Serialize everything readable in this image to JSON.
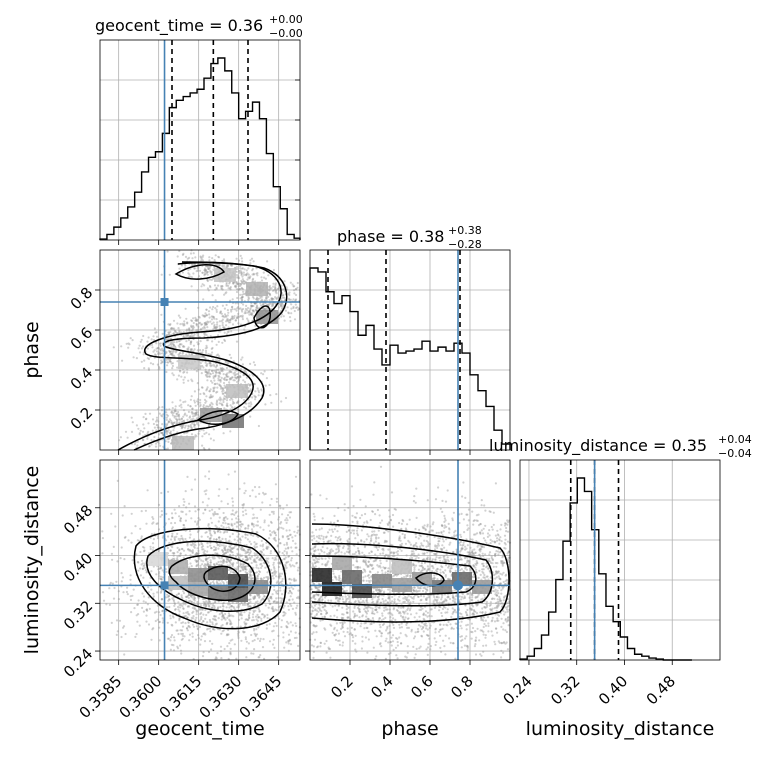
{
  "chart_data": {
    "type": "corner",
    "parameters": [
      "geocent_time",
      "phase",
      "luminosity_distance"
    ],
    "axis_labels": {
      "geocent_time": "geocent_time",
      "phase": "phase",
      "luminosity_distance": "luminosity_distance"
    },
    "ranges": {
      "geocent_time": [
        0.3578,
        0.3653
      ],
      "phase": [
        0.0,
        1.0
      ],
      "luminosity_distance": [
        0.225,
        0.56
      ]
    },
    "ticks": {
      "geocent_time": [
        "0.3585",
        "0.3600",
        "0.3615",
        "0.3630",
        "0.3645"
      ],
      "phase_x": [
        "0.2",
        "0.4",
        "0.6",
        "0.8"
      ],
      "phase_y": [
        "0.2",
        "0.4",
        "0.6",
        "0.8"
      ],
      "luminosity_distance_x": [
        "0.24",
        "0.32",
        "0.40",
        "0.48"
      ],
      "luminosity_distance_y": [
        "0.24",
        "0.32",
        "0.40",
        "0.48"
      ]
    },
    "truths": {
      "geocent_time": 0.36022,
      "phase": 0.74,
      "luminosity_distance": 0.35
    },
    "titles": [
      {
        "param": "geocent_time",
        "text": "geocent_time = 0.36",
        "sup": "+0.00",
        "sub": "−0.00"
      },
      {
        "param": "phase",
        "text": "phase = 0.38",
        "sup": "+0.38",
        "sub": "−0.28"
      },
      {
        "param": "luminosity_distance",
        "text": "luminosity_distance = 0.35",
        "sup": "+0.04",
        "sub": "−0.04"
      }
    ],
    "quantiles": {
      "geocent_time": [
        0.3605,
        0.36205,
        0.36335
      ],
      "phase": [
        0.09,
        0.38,
        0.75
      ],
      "luminosity_distance": [
        0.31,
        0.35,
        0.39
      ]
    },
    "histograms": {
      "geocent_time": {
        "bins": [
          0.3578,
          0.35806,
          0.35832,
          0.35858,
          0.35884,
          0.3591,
          0.35936,
          0.35962,
          0.35988,
          0.36014,
          0.3604,
          0.36066,
          0.36092,
          0.36118,
          0.36144,
          0.3617,
          0.36196,
          0.36222,
          0.36248,
          0.36274,
          0.363,
          0.36326,
          0.36352,
          0.36378,
          0.36404,
          0.3643,
          0.36456,
          0.36482,
          0.36508,
          0.3653
        ],
        "values": [
          0.005,
          0.03,
          0.07,
          0.12,
          0.18,
          0.26,
          0.37,
          0.45,
          0.48,
          0.58,
          0.72,
          0.76,
          0.78,
          0.8,
          0.82,
          0.88,
          0.96,
          0.99,
          0.92,
          0.8,
          0.66,
          0.7,
          0.75,
          0.66,
          0.47,
          0.29,
          0.17,
          0.03,
          0.01
        ]
      },
      "phase": {
        "bins": [
          0.0,
          0.04,
          0.08,
          0.12,
          0.16,
          0.2,
          0.24,
          0.28,
          0.32,
          0.36,
          0.4,
          0.44,
          0.48,
          0.52,
          0.56,
          0.6,
          0.64,
          0.68,
          0.72,
          0.76,
          0.8,
          0.84,
          0.88,
          0.92,
          0.96,
          1.0
        ],
        "values": [
          0.92,
          0.9,
          0.8,
          0.74,
          0.78,
          0.7,
          0.58,
          0.63,
          0.51,
          0.43,
          0.53,
          0.49,
          0.5,
          0.51,
          0.55,
          0.5,
          0.52,
          0.5,
          0.54,
          0.49,
          0.38,
          0.3,
          0.22,
          0.1,
          0.03
        ]
      },
      "luminosity_distance": {
        "bins": [
          0.225,
          0.237,
          0.249,
          0.261,
          0.273,
          0.285,
          0.297,
          0.309,
          0.321,
          0.333,
          0.345,
          0.357,
          0.369,
          0.381,
          0.393,
          0.405,
          0.417,
          0.429,
          0.441,
          0.453,
          0.465,
          0.477,
          0.489,
          0.501,
          0.513
        ],
        "values": [
          0.005,
          0.02,
          0.06,
          0.13,
          0.25,
          0.42,
          0.62,
          0.82,
          0.95,
          0.88,
          0.68,
          0.45,
          0.28,
          0.2,
          0.12,
          0.06,
          0.03,
          0.02,
          0.01,
          0.005,
          0.0,
          0.0,
          0.0,
          0.0
        ]
      }
    },
    "scatter_2d": [
      {
        "x": "geocent_time",
        "y": "phase",
        "density_ridge": [
          [
            0.3601,
            0.03
          ],
          [
            0.3606,
            0.1
          ],
          [
            0.3612,
            0.17
          ],
          [
            0.3622,
            0.22
          ],
          [
            0.363,
            0.3
          ],
          [
            0.3626,
            0.38
          ],
          [
            0.3612,
            0.44
          ],
          [
            0.3604,
            0.5
          ],
          [
            0.3608,
            0.58
          ],
          [
            0.362,
            0.64
          ],
          [
            0.3634,
            0.68
          ],
          [
            0.3642,
            0.72
          ],
          [
            0.364,
            0.78
          ],
          [
            0.363,
            0.84
          ],
          [
            0.3622,
            0.9
          ],
          [
            0.3618,
            0.95
          ]
        ]
      },
      {
        "x": "geocent_time",
        "y": "luminosity_distance",
        "center": [
          0.3625,
          0.35
        ]
      },
      {
        "x": "phase",
        "y": "luminosity_distance",
        "center": [
          0.45,
          0.355
        ]
      }
    ]
  }
}
